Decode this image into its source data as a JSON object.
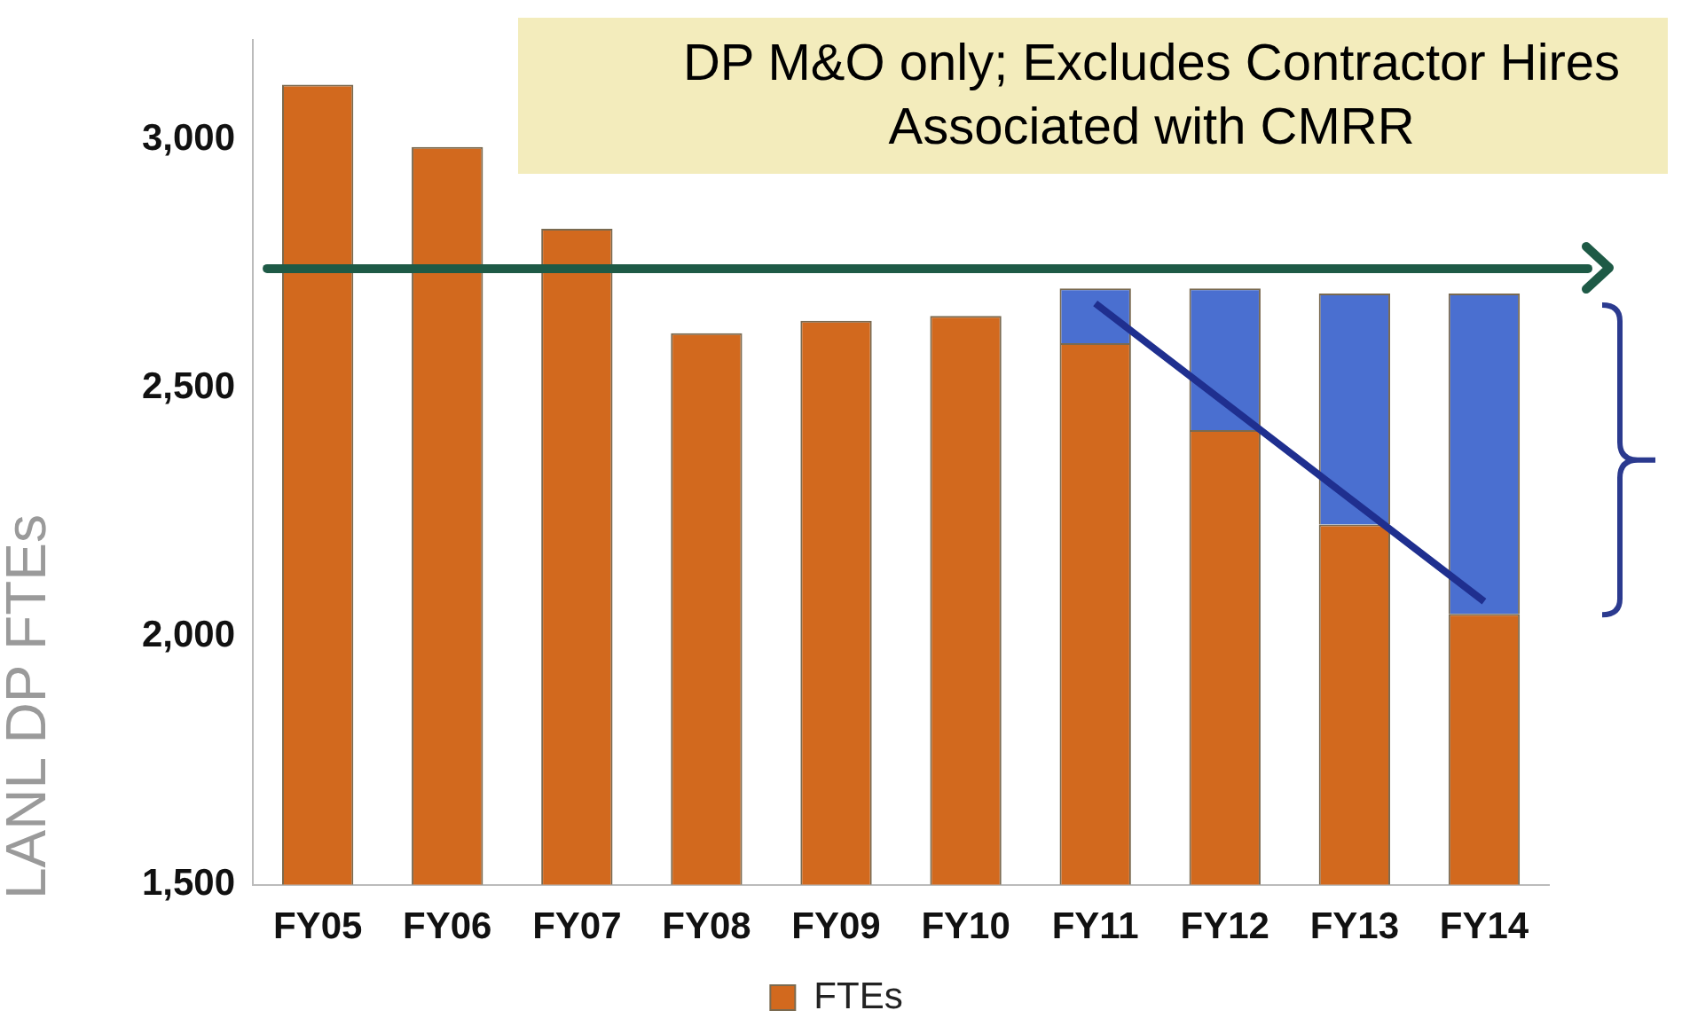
{
  "chart_data": {
    "type": "bar",
    "ylabel": "LANL DP FTEs",
    "categories": [
      "FY05",
      "FY06",
      "FY07",
      "FY08",
      "FY09",
      "FY10",
      "FY11",
      "FY12",
      "FY13",
      "FY14"
    ],
    "series": [
      {
        "name": "FTEs",
        "color": "#d2691e",
        "values": [
          3110,
          2985,
          2820,
          2610,
          2635,
          2645,
          2590,
          2415,
          2225,
          2045
        ]
      },
      {
        "color": "#4a6fd0",
        "base": [
          null,
          null,
          null,
          null,
          null,
          null,
          2590,
          2415,
          2225,
          2045
        ],
        "values": [
          null,
          null,
          null,
          null,
          null,
          null,
          110,
          285,
          465,
          645
        ]
      },
      {
        "type": "line",
        "color": "#1f2f8f",
        "values": [
          null,
          null,
          null,
          null,
          null,
          null,
          2670,
          2470,
          2270,
          2070
        ]
      }
    ],
    "ylim": [
      1500,
      3200
    ],
    "yticks": [
      {
        "value": 1500,
        "label": "1,500"
      },
      {
        "value": 2000,
        "label": "2,000"
      },
      {
        "value": 2500,
        "label": "2,500"
      },
      {
        "value": 3000,
        "label": "3,000"
      }
    ],
    "ref_lines": [
      {
        "axis": "y",
        "value": 2740,
        "color": "#1e5a46"
      }
    ],
    "annotations": [
      "DP M&O only; Excludes Contractor Hires Associated with CMRR"
    ],
    "grid": false,
    "legend": "bottom"
  }
}
